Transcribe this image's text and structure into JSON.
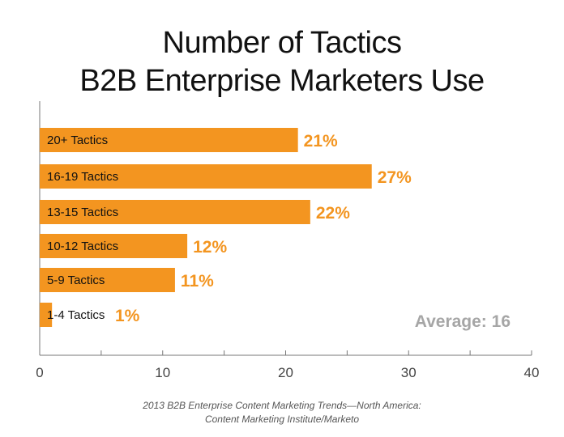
{
  "chart_data": {
    "type": "bar",
    "orientation": "horizontal",
    "title_lines": [
      "Number of Tactics",
      "B2B Enterprise Marketers Use"
    ],
    "categories": [
      "20+ Tactics",
      "16-19 Tactics",
      "13-15 Tactics",
      "10-12 Tactics",
      "5-9 Tactics",
      "1-4 Tactics"
    ],
    "values": [
      21,
      27,
      22,
      12,
      11,
      1
    ],
    "value_labels": [
      "21%",
      "27%",
      "22%",
      "12%",
      "11%",
      "1%"
    ],
    "xlim": [
      0,
      40
    ],
    "x_ticks": [
      0,
      10,
      20,
      30,
      40
    ],
    "bar_color": "#f39520",
    "annotation": "Average: 16",
    "source_lines": [
      "2013 B2B Enterprise Content Marketing Trends—North America:",
      "Content Marketing Institute/Marketo"
    ]
  }
}
